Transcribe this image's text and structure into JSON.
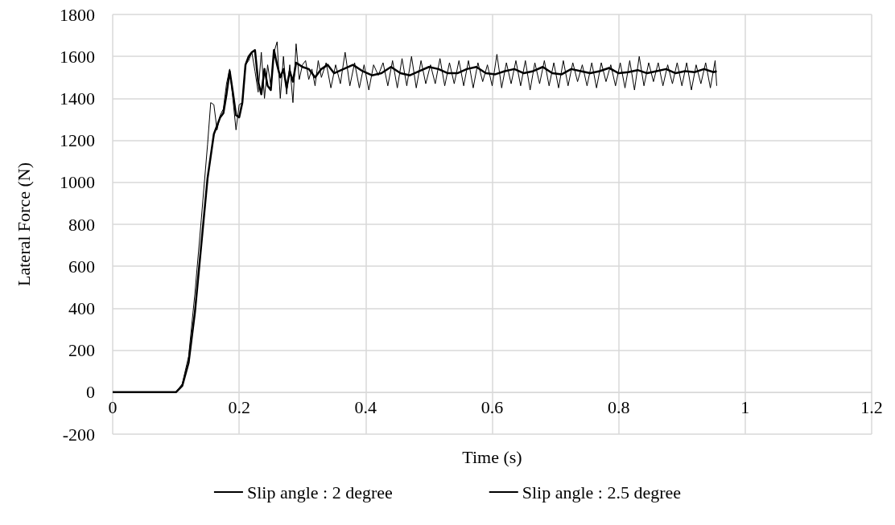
{
  "chart_data": {
    "type": "line",
    "xlabel": "Time (s)",
    "ylabel": "Lateral Force (N)",
    "xlim": [
      0,
      1.2
    ],
    "xticks": [
      0,
      0.2,
      0.4,
      0.6,
      0.8,
      1,
      1.2
    ],
    "ylim": [
      -200,
      1800
    ],
    "yticks": [
      -200,
      0,
      200,
      400,
      600,
      800,
      1000,
      1200,
      1400,
      1600,
      1800
    ],
    "grid": true,
    "legend": "bottom",
    "marker": "none",
    "line_style": "solid",
    "series": [
      {
        "name": "Slip angle : 2 degree",
        "color": "#000000",
        "x": [
          0,
          0.1,
          0.11,
          0.12,
          0.13,
          0.14,
          0.15,
          0.16,
          0.17,
          0.175,
          0.18,
          0.185,
          0.19,
          0.195,
          0.2,
          0.205,
          0.21,
          0.215,
          0.22,
          0.225,
          0.23,
          0.235,
          0.24,
          0.245,
          0.25,
          0.255,
          0.26,
          0.265,
          0.27,
          0.275,
          0.28,
          0.285,
          0.29,
          0.295,
          0.3,
          0.31,
          0.32,
          0.33,
          0.34,
          0.35,
          0.365,
          0.38,
          0.395,
          0.41,
          0.425,
          0.44,
          0.455,
          0.47,
          0.485,
          0.5,
          0.515,
          0.53,
          0.545,
          0.56,
          0.575,
          0.59,
          0.605,
          0.62,
          0.635,
          0.65,
          0.665,
          0.68,
          0.695,
          0.71,
          0.725,
          0.74,
          0.755,
          0.77,
          0.785,
          0.8,
          0.815,
          0.83,
          0.845,
          0.86,
          0.875,
          0.89,
          0.905,
          0.92,
          0.935,
          0.95,
          0.955
        ],
        "values": [
          0,
          0,
          30,
          140,
          380,
          700,
          1020,
          1230,
          1310,
          1330,
          1420,
          1530,
          1430,
          1320,
          1310,
          1380,
          1560,
          1600,
          1620,
          1630,
          1480,
          1420,
          1540,
          1460,
          1440,
          1630,
          1560,
          1500,
          1540,
          1450,
          1530,
          1480,
          1570,
          1560,
          1550,
          1540,
          1500,
          1540,
          1560,
          1520,
          1540,
          1560,
          1530,
          1510,
          1520,
          1550,
          1520,
          1510,
          1530,
          1550,
          1540,
          1520,
          1520,
          1540,
          1550,
          1520,
          1515,
          1530,
          1540,
          1520,
          1530,
          1550,
          1520,
          1515,
          1540,
          1530,
          1520,
          1530,
          1545,
          1520,
          1525,
          1535,
          1520,
          1530,
          1540,
          1520,
          1530,
          1525,
          1540,
          1525,
          1530
        ]
      },
      {
        "name": "Slip angle : 2.5 degree",
        "color": "#000000",
        "x": [
          0,
          0.1,
          0.11,
          0.12,
          0.13,
          0.14,
          0.15,
          0.155,
          0.16,
          0.165,
          0.17,
          0.175,
          0.18,
          0.185,
          0.19,
          0.195,
          0.2,
          0.205,
          0.21,
          0.215,
          0.22,
          0.225,
          0.23,
          0.235,
          0.24,
          0.245,
          0.25,
          0.255,
          0.26,
          0.265,
          0.27,
          0.275,
          0.28,
          0.285,
          0.29,
          0.295,
          0.3,
          0.305,
          0.31,
          0.315,
          0.32,
          0.325,
          0.33,
          0.3375,
          0.345,
          0.3525,
          0.36,
          0.3675,
          0.375,
          0.3825,
          0.39,
          0.3975,
          0.405,
          0.4125,
          0.42,
          0.4275,
          0.435,
          0.4425,
          0.45,
          0.4575,
          0.465,
          0.4725,
          0.48,
          0.4875,
          0.495,
          0.5025,
          0.51,
          0.5175,
          0.525,
          0.5325,
          0.54,
          0.5475,
          0.555,
          0.5625,
          0.57,
          0.5775,
          0.585,
          0.5925,
          0.6,
          0.6075,
          0.615,
          0.6225,
          0.63,
          0.6375,
          0.645,
          0.6525,
          0.66,
          0.6675,
          0.675,
          0.6825,
          0.69,
          0.6975,
          0.705,
          0.7125,
          0.72,
          0.7275,
          0.735,
          0.7425,
          0.75,
          0.7575,
          0.765,
          0.7725,
          0.78,
          0.7875,
          0.795,
          0.8025,
          0.81,
          0.8175,
          0.825,
          0.8325,
          0.84,
          0.8475,
          0.855,
          0.8625,
          0.87,
          0.8775,
          0.885,
          0.8925,
          0.9,
          0.9075,
          0.915,
          0.9225,
          0.93,
          0.9375,
          0.945,
          0.9525,
          0.955
        ],
        "values": [
          0,
          0,
          40,
          170,
          470,
          820,
          1180,
          1380,
          1370,
          1250,
          1320,
          1350,
          1470,
          1540,
          1400,
          1250,
          1370,
          1380,
          1560,
          1580,
          1620,
          1530,
          1430,
          1620,
          1400,
          1560,
          1460,
          1620,
          1670,
          1400,
          1600,
          1420,
          1560,
          1380,
          1660,
          1490,
          1560,
          1580,
          1490,
          1540,
          1460,
          1580,
          1500,
          1570,
          1450,
          1560,
          1470,
          1620,
          1460,
          1570,
          1450,
          1560,
          1440,
          1560,
          1510,
          1570,
          1460,
          1580,
          1450,
          1590,
          1460,
          1600,
          1450,
          1580,
          1470,
          1560,
          1470,
          1590,
          1460,
          1570,
          1470,
          1580,
          1460,
          1580,
          1450,
          1570,
          1480,
          1560,
          1460,
          1610,
          1450,
          1570,
          1470,
          1580,
          1460,
          1580,
          1440,
          1570,
          1470,
          1580,
          1460,
          1570,
          1450,
          1580,
          1460,
          1570,
          1480,
          1560,
          1460,
          1570,
          1450,
          1570,
          1480,
          1560,
          1460,
          1570,
          1450,
          1580,
          1440,
          1600,
          1460,
          1570,
          1480,
          1570,
          1460,
          1560,
          1470,
          1570,
          1460,
          1570,
          1440,
          1560,
          1470,
          1570,
          1450,
          1580,
          1460
        ]
      }
    ]
  }
}
